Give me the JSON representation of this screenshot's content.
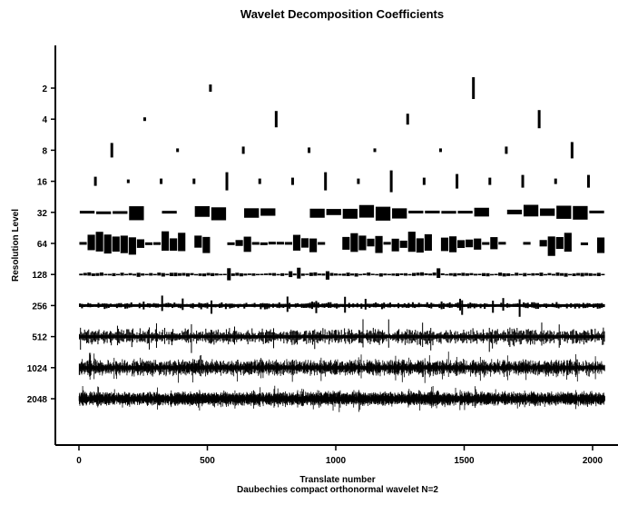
{
  "chart_data": {
    "type": "scatter",
    "title": "Wavelet Decomposition Coefficients",
    "xlabel": "Translate number",
    "xlabel_sub": "Daubechies compact orthonormal wavelet N=2",
    "ylabel": "Resolution Level",
    "xlim": [
      -50,
      2100
    ],
    "x_ticks": [
      0,
      500,
      1000,
      1500,
      2000
    ],
    "x_tick_labels": [
      "0",
      "500",
      "1000",
      "1500",
      "2000"
    ],
    "levels": [
      {
        "label": "2",
        "n": 2,
        "spikes": [
          [
            512,
            4
          ],
          [
            1536,
            12
          ]
        ]
      },
      {
        "label": "4",
        "n": 4,
        "spikes": [
          [
            256,
            2
          ],
          [
            768,
            9
          ],
          [
            1280,
            6
          ],
          [
            1792,
            10
          ]
        ]
      },
      {
        "label": "8",
        "n": 8,
        "spikes": [
          [
            128,
            8
          ],
          [
            384,
            2
          ],
          [
            640,
            4
          ],
          [
            896,
            3
          ],
          [
            1152,
            2
          ],
          [
            1408,
            2
          ],
          [
            1664,
            4
          ],
          [
            1920,
            9
          ]
        ]
      },
      {
        "label": "16",
        "n": 16,
        "spikes": [
          [
            64,
            5
          ],
          [
            192,
            2
          ],
          [
            320,
            3
          ],
          [
            448,
            3
          ],
          [
            576,
            10
          ],
          [
            704,
            3
          ],
          [
            832,
            4
          ],
          [
            960,
            10
          ],
          [
            1088,
            3
          ],
          [
            1216,
            12
          ],
          [
            1344,
            4
          ],
          [
            1472,
            8
          ],
          [
            1600,
            4
          ],
          [
            1728,
            7
          ],
          [
            1856,
            3
          ],
          [
            1984,
            7
          ]
        ]
      },
      {
        "label": "32",
        "n": 32,
        "amp": 6,
        "sparse": true
      },
      {
        "label": "64",
        "n": 64,
        "amp": 8,
        "sparse": true
      },
      {
        "label": "128",
        "n": 128,
        "amp": 6,
        "base": 1.5
      },
      {
        "label": "256",
        "n": 256,
        "amp": 8,
        "base": 2.5
      },
      {
        "label": "512",
        "n": 512,
        "amp": 9,
        "base": 6
      },
      {
        "label": "1024",
        "n": 1024,
        "amp": 8,
        "base": 6
      },
      {
        "label": "2048",
        "n": 2048,
        "amp": 6,
        "base": 5
      }
    ],
    "colors": {
      "marks": "#000000",
      "axes": "#000000",
      "background": "#ffffff"
    },
    "grid": false,
    "legend": "none"
  }
}
